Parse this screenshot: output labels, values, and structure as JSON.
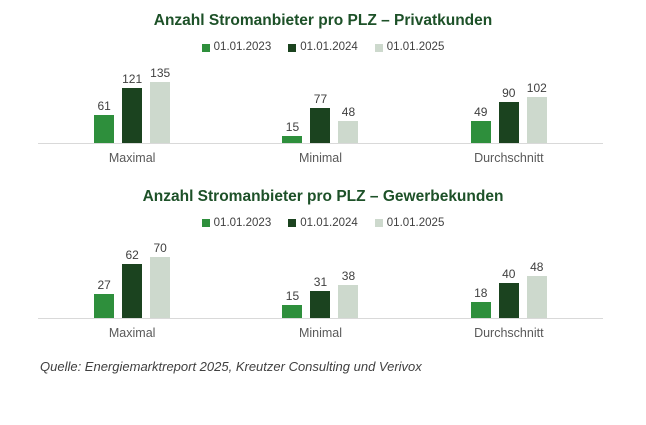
{
  "colors": {
    "title_green": "#1d5128",
    "series_2023": "#2e8f3c",
    "series_2024": "#1b431f",
    "series_2025": "#cdd9cd",
    "axis_line": "#d9d9d9",
    "value_label": "#3f3f3f",
    "category_label": "#595959",
    "source_text": "#404040",
    "background": "#ffffff"
  },
  "chart_data": [
    {
      "type": "bar",
      "title": "Anzahl Stromanbieter pro PLZ – Privatkunden",
      "categories": [
        "Maximal",
        "Minimal",
        "Durchschnitt"
      ],
      "series": [
        {
          "name": "01.01.2023",
          "color": "#2e8f3c",
          "values": [
            61,
            15,
            49
          ]
        },
        {
          "name": "01.01.2024",
          "color": "#1b431f",
          "values": [
            121,
            77,
            90
          ]
        },
        {
          "name": "01.01.2025",
          "color": "#cdd9cd",
          "values": [
            135,
            48,
            102
          ]
        }
      ],
      "ylim": [
        0,
        135
      ],
      "xlabel": "",
      "ylabel": "",
      "grid": false,
      "legend_position": "top",
      "value_labels": true
    },
    {
      "type": "bar",
      "title": "Anzahl Stromanbieter pro PLZ – Gewerbekunden",
      "categories": [
        "Maximal",
        "Minimal",
        "Durchschnitt"
      ],
      "series": [
        {
          "name": "01.01.2023",
          "color": "#2e8f3c",
          "values": [
            27,
            15,
            18
          ]
        },
        {
          "name": "01.01.2024",
          "color": "#1b431f",
          "values": [
            62,
            31,
            40
          ]
        },
        {
          "name": "01.01.2025",
          "color": "#cdd9cd",
          "values": [
            70,
            38,
            48
          ]
        }
      ],
      "ylim": [
        0,
        70
      ],
      "xlabel": "",
      "ylabel": "",
      "grid": false,
      "legend_position": "top",
      "value_labels": true
    }
  ],
  "source": "Quelle: Energiemarktreport 2025, Kreutzer Consulting und Verivox"
}
